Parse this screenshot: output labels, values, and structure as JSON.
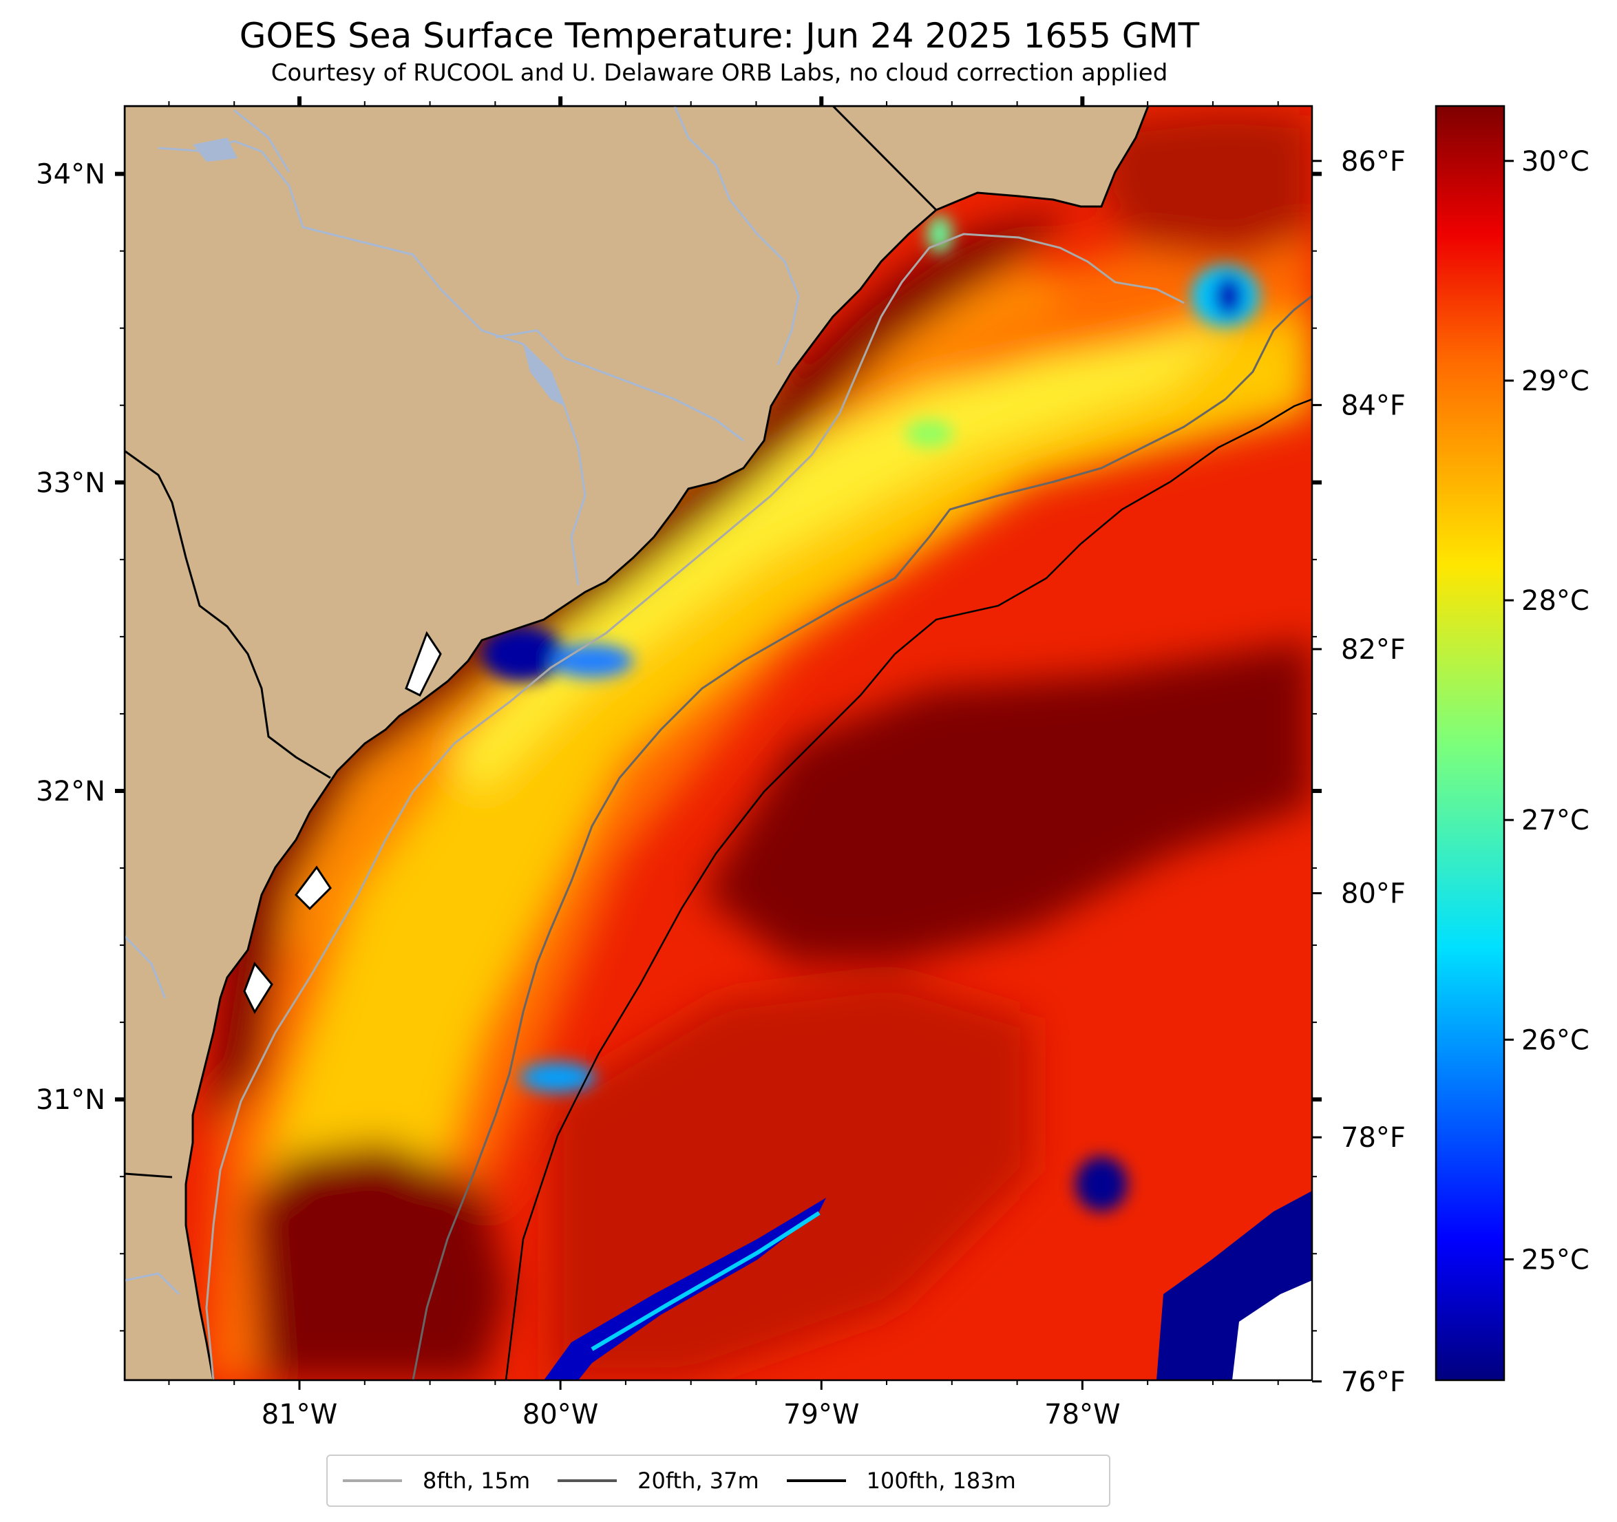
{
  "header": {
    "title": "GOES Sea Surface Temperature: Jun 24 2025 1655 GMT",
    "subtitle": "Courtesy of RUCOOL and U. Delaware ORB Labs, no cloud correction applied"
  },
  "map": {
    "lon_range": [
      -81.67,
      -77.12
    ],
    "lat_range": [
      30.09,
      34.22
    ],
    "lon_ticks": [
      {
        "label": "81°W",
        "value": -81
      },
      {
        "label": "80°W",
        "value": -80
      },
      {
        "label": "79°W",
        "value": -79
      },
      {
        "label": "78°W",
        "value": -78
      }
    ],
    "lat_ticks": [
      {
        "label": "34°N",
        "value": 34
      },
      {
        "label": "33°N",
        "value": 33
      },
      {
        "label": "32°N",
        "value": 32
      },
      {
        "label": "31°N",
        "value": 31
      }
    ],
    "fahrenheit_ticks": [
      "86°F",
      "84°F",
      "82°F",
      "80°F",
      "78°F",
      "76°F"
    ],
    "colors": {
      "land": "#d2b48c",
      "rivers": "#a6b8d4",
      "coast": "#000000",
      "no_data": "#ffffff"
    }
  },
  "colorbar": {
    "label_unit": "°C",
    "min_c": 24.45,
    "max_c": 30.25,
    "ticks": [
      "30°C",
      "29°C",
      "28°C",
      "27°C",
      "26°C",
      "25°C"
    ],
    "tick_values": [
      30,
      29,
      28,
      27,
      26,
      25
    ],
    "colormap": "jet"
  },
  "legend": {
    "items": [
      {
        "label": "8fth, 15m",
        "color": "#aaaaaa"
      },
      {
        "label": "20fth, 37m",
        "color": "#555555"
      },
      {
        "label": "100fth, 183m",
        "color": "#000000"
      }
    ]
  }
}
